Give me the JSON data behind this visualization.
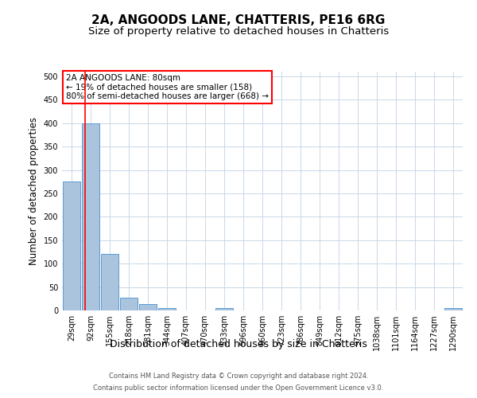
{
  "title": "2A, ANGOODS LANE, CHATTERIS, PE16 6RG",
  "subtitle": "Size of property relative to detached houses in Chatteris",
  "xlabel": "Distribution of detached houses by size in Chatteris",
  "ylabel": "Number of detached properties",
  "categories": [
    "29sqm",
    "92sqm",
    "155sqm",
    "218sqm",
    "281sqm",
    "344sqm",
    "407sqm",
    "470sqm",
    "533sqm",
    "596sqm",
    "660sqm",
    "723sqm",
    "786sqm",
    "849sqm",
    "912sqm",
    "975sqm",
    "1038sqm",
    "1101sqm",
    "1164sqm",
    "1227sqm",
    "1290sqm"
  ],
  "values": [
    275,
    400,
    120,
    27,
    13,
    5,
    0,
    0,
    5,
    0,
    0,
    0,
    0,
    0,
    0,
    0,
    0,
    0,
    0,
    0,
    5
  ],
  "bar_color": "#aac4de",
  "bar_edge_color": "#5b9bd5",
  "ylim": [
    0,
    510
  ],
  "yticks": [
    0,
    50,
    100,
    150,
    200,
    250,
    300,
    350,
    400,
    450,
    500
  ],
  "red_line_x": 0.72,
  "annotation_text": "2A ANGOODS LANE: 80sqm\n← 19% of detached houses are smaller (158)\n80% of semi-detached houses are larger (668) →",
  "footer_line1": "Contains HM Land Registry data © Crown copyright and database right 2024.",
  "footer_line2": "Contains public sector information licensed under the Open Government Licence v3.0.",
  "bg_color": "#ffffff",
  "grid_color": "#c8d8e8",
  "title_fontsize": 11,
  "subtitle_fontsize": 9.5,
  "axis_label_fontsize": 8.5,
  "tick_fontsize": 7,
  "annotation_fontsize": 7.5,
  "footer_fontsize": 6
}
